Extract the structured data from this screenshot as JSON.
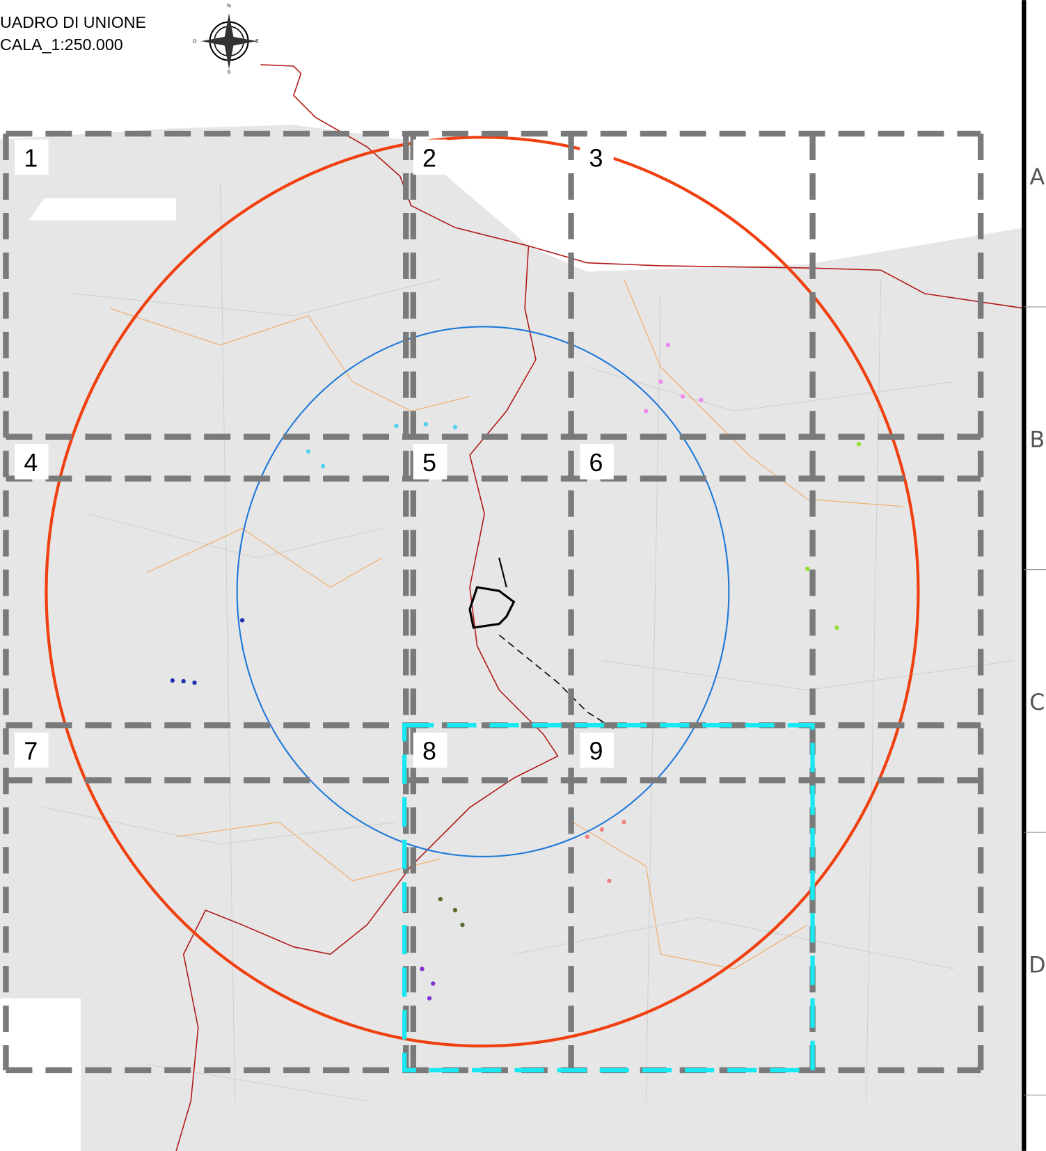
{
  "header": {
    "title": "UADRO DI UNIONE",
    "scale": "CALA_1:250.000"
  },
  "compass": {
    "north": "N",
    "east": "E",
    "south": "S",
    "west": "O"
  },
  "tiles": [
    "1",
    "2",
    "3",
    "4",
    "5",
    "6",
    "7",
    "8",
    "9"
  ],
  "rows": [
    "A",
    "B",
    "C",
    "D"
  ]
}
